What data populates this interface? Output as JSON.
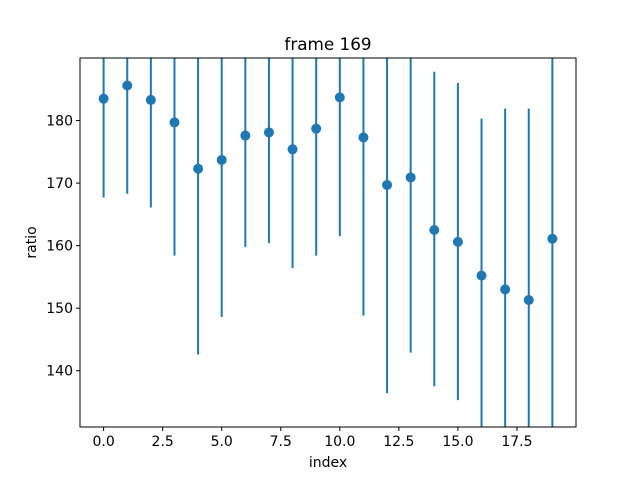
{
  "chart_data": {
    "type": "scatter",
    "title": "frame 169",
    "xlabel": "index",
    "ylabel": "ratio",
    "xlim": [
      -1,
      20
    ],
    "ylim": [
      131,
      190
    ],
    "xticks": [
      0.0,
      2.5,
      5.0,
      7.5,
      10.0,
      12.5,
      15.0,
      17.5
    ],
    "xtick_labels": [
      "0.0",
      "2.5",
      "5.0",
      "7.5",
      "10.0",
      "12.5",
      "15.0",
      "17.5"
    ],
    "yticks": [
      140,
      150,
      160,
      170,
      180
    ],
    "ytick_labels": [
      "140",
      "150",
      "160",
      "170",
      "180"
    ],
    "grid": false,
    "color": "#1f77b4",
    "x": [
      0,
      1,
      2,
      3,
      4,
      5,
      6,
      7,
      8,
      9,
      10,
      11,
      12,
      13,
      14,
      15,
      16,
      17,
      18,
      19
    ],
    "y": [
      183.5,
      185.6,
      183.3,
      179.7,
      172.3,
      173.7,
      177.6,
      178.1,
      175.4,
      178.7,
      183.7,
      177.3,
      169.7,
      170.9,
      162.5,
      160.6,
      155.2,
      153.0,
      151.3,
      161.1
    ],
    "yerr_lower": [
      167.7,
      168.3,
      166.1,
      158.4,
      142.6,
      148.6,
      159.8,
      160.4,
      156.4,
      158.4,
      161.5,
      148.8,
      136.4,
      142.9,
      137.5,
      135.3,
      131.0,
      131.0,
      131.0,
      131.0
    ],
    "yerr_upper": [
      190.0,
      190.0,
      190.0,
      190.0,
      190.0,
      190.0,
      190.0,
      190.0,
      190.0,
      190.0,
      190.0,
      190.0,
      190.0,
      190.0,
      187.8,
      186.0,
      180.3,
      181.9,
      181.9,
      190.0
    ]
  }
}
